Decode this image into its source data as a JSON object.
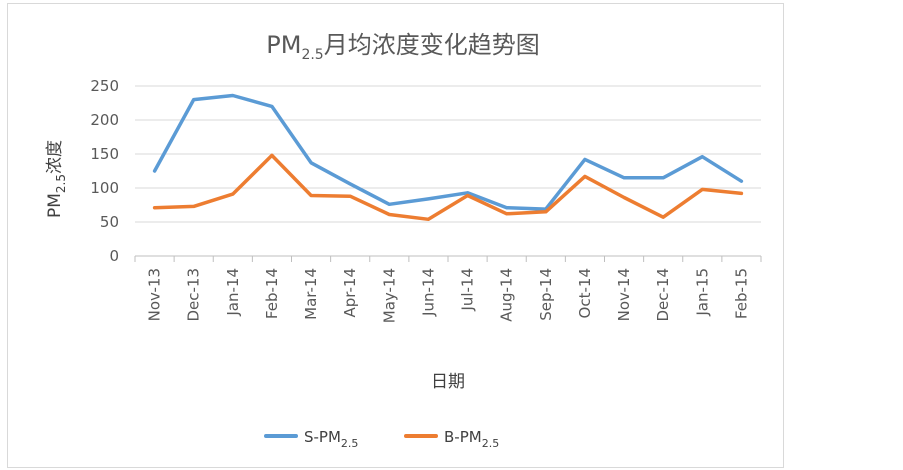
{
  "chart_data": {
    "type": "line",
    "title": {
      "main": "PM",
      "sub": "2.5",
      "rest": "月均浓度变化趋势图"
    },
    "ylabel": {
      "main": "PM",
      "sub": "2.5",
      "rest": "浓度"
    },
    "xlabel": "日期",
    "ylim": [
      0,
      250
    ],
    "yticks": [
      0,
      50,
      100,
      150,
      200,
      250
    ],
    "grid": true,
    "legend_position": "bottom",
    "categories": [
      "Nov-13",
      "Dec-13",
      "Jan-14",
      "Feb-14",
      "Mar-14",
      "Apr-14",
      "May-14",
      "Jun-14",
      "Jul-14",
      "Aug-14",
      "Sep-14",
      "Oct-14",
      "Nov-14",
      "Dec-14",
      "Jan-15",
      "Feb-15"
    ],
    "series": [
      {
        "name_main": "S-PM",
        "name_sub": "2.5",
        "color": "#5b9bd5",
        "values": [
          125,
          230,
          236,
          220,
          137,
          106,
          76,
          84,
          93,
          71,
          69,
          142,
          115,
          115,
          146,
          110
        ]
      },
      {
        "name_main": "B-PM",
        "name_sub": "2.5",
        "color": "#ed7d31",
        "values": [
          71,
          73,
          91,
          148,
          89,
          88,
          61,
          54,
          89,
          62,
          65,
          117,
          86,
          57,
          98,
          92
        ]
      }
    ]
  }
}
